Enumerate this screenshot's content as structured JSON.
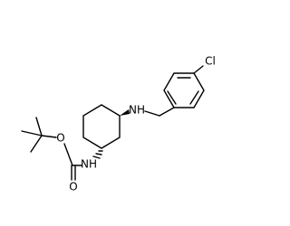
{
  "atoms": [
    {
      "label": "Cl"
    },
    {
      "label": "NH"
    },
    {
      "label": "NH"
    },
    {
      "label": "O"
    },
    {
      "label": "O"
    }
  ]
}
